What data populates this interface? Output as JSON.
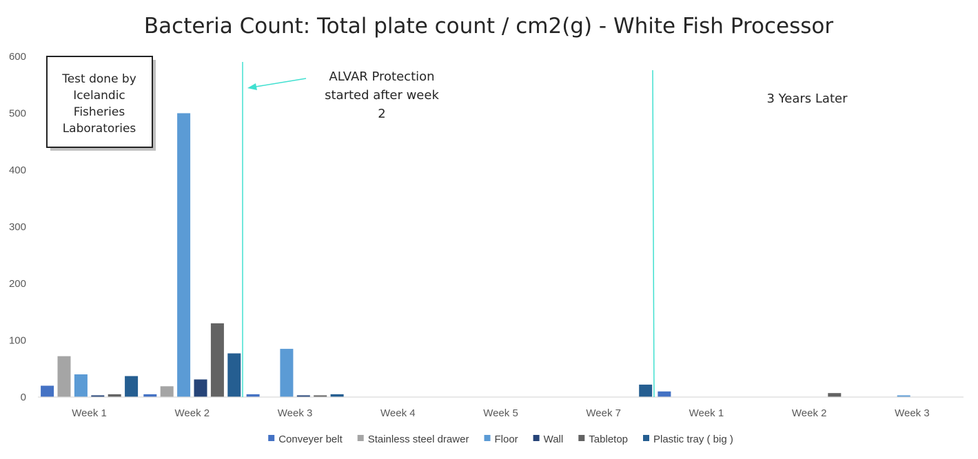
{
  "chart_data": {
    "type": "bar",
    "title": "Bacteria Count: Total plate count / cm2(g) - White Fish Processor",
    "xlabel": "",
    "ylabel": "",
    "ylim": [
      0,
      600
    ],
    "yticks": [
      0,
      100,
      200,
      300,
      400,
      500,
      600
    ],
    "grid": false,
    "legend_position": "bottom",
    "categories": [
      "Week 1",
      "Week 2",
      "Week 3",
      "Week 4",
      "Week 5",
      "Week 7",
      "Week 1",
      "Week 2",
      "Week 3"
    ],
    "series": [
      {
        "name": "Conveyer belt",
        "color": "#4472C4",
        "values": [
          20,
          5,
          5,
          0,
          0,
          0,
          10,
          0,
          0
        ]
      },
      {
        "name": "Stainless steel drawer",
        "color": "#A5A5A5",
        "values": [
          72,
          19,
          0,
          0,
          0,
          0,
          0,
          0,
          0
        ]
      },
      {
        "name": "Floor",
        "color": "#5B9BD5",
        "values": [
          40,
          500,
          85,
          0,
          0,
          0,
          0,
          0,
          3
        ]
      },
      {
        "name": "Wall",
        "color": "#264478",
        "values": [
          3,
          31,
          3,
          0,
          0,
          0,
          0,
          0,
          0
        ]
      },
      {
        "name": "Tabletop",
        "color": "#636363",
        "values": [
          5,
          130,
          3,
          0,
          0,
          0,
          0,
          7,
          0
        ]
      },
      {
        "name": "Plastic tray ( big )",
        "color": "#255E91",
        "values": [
          37,
          77,
          5,
          0,
          0,
          22,
          0,
          0,
          0
        ]
      }
    ],
    "annotations": {
      "note_box_lines": [
        "Test done by",
        "Icelandic",
        "Fisheries",
        "Laboratories"
      ],
      "alvar_lines": [
        "ALVAR Protection",
        "started after week",
        "2"
      ],
      "later_label": "3 Years Later"
    },
    "accent_line_color": "#40E0D0"
  }
}
